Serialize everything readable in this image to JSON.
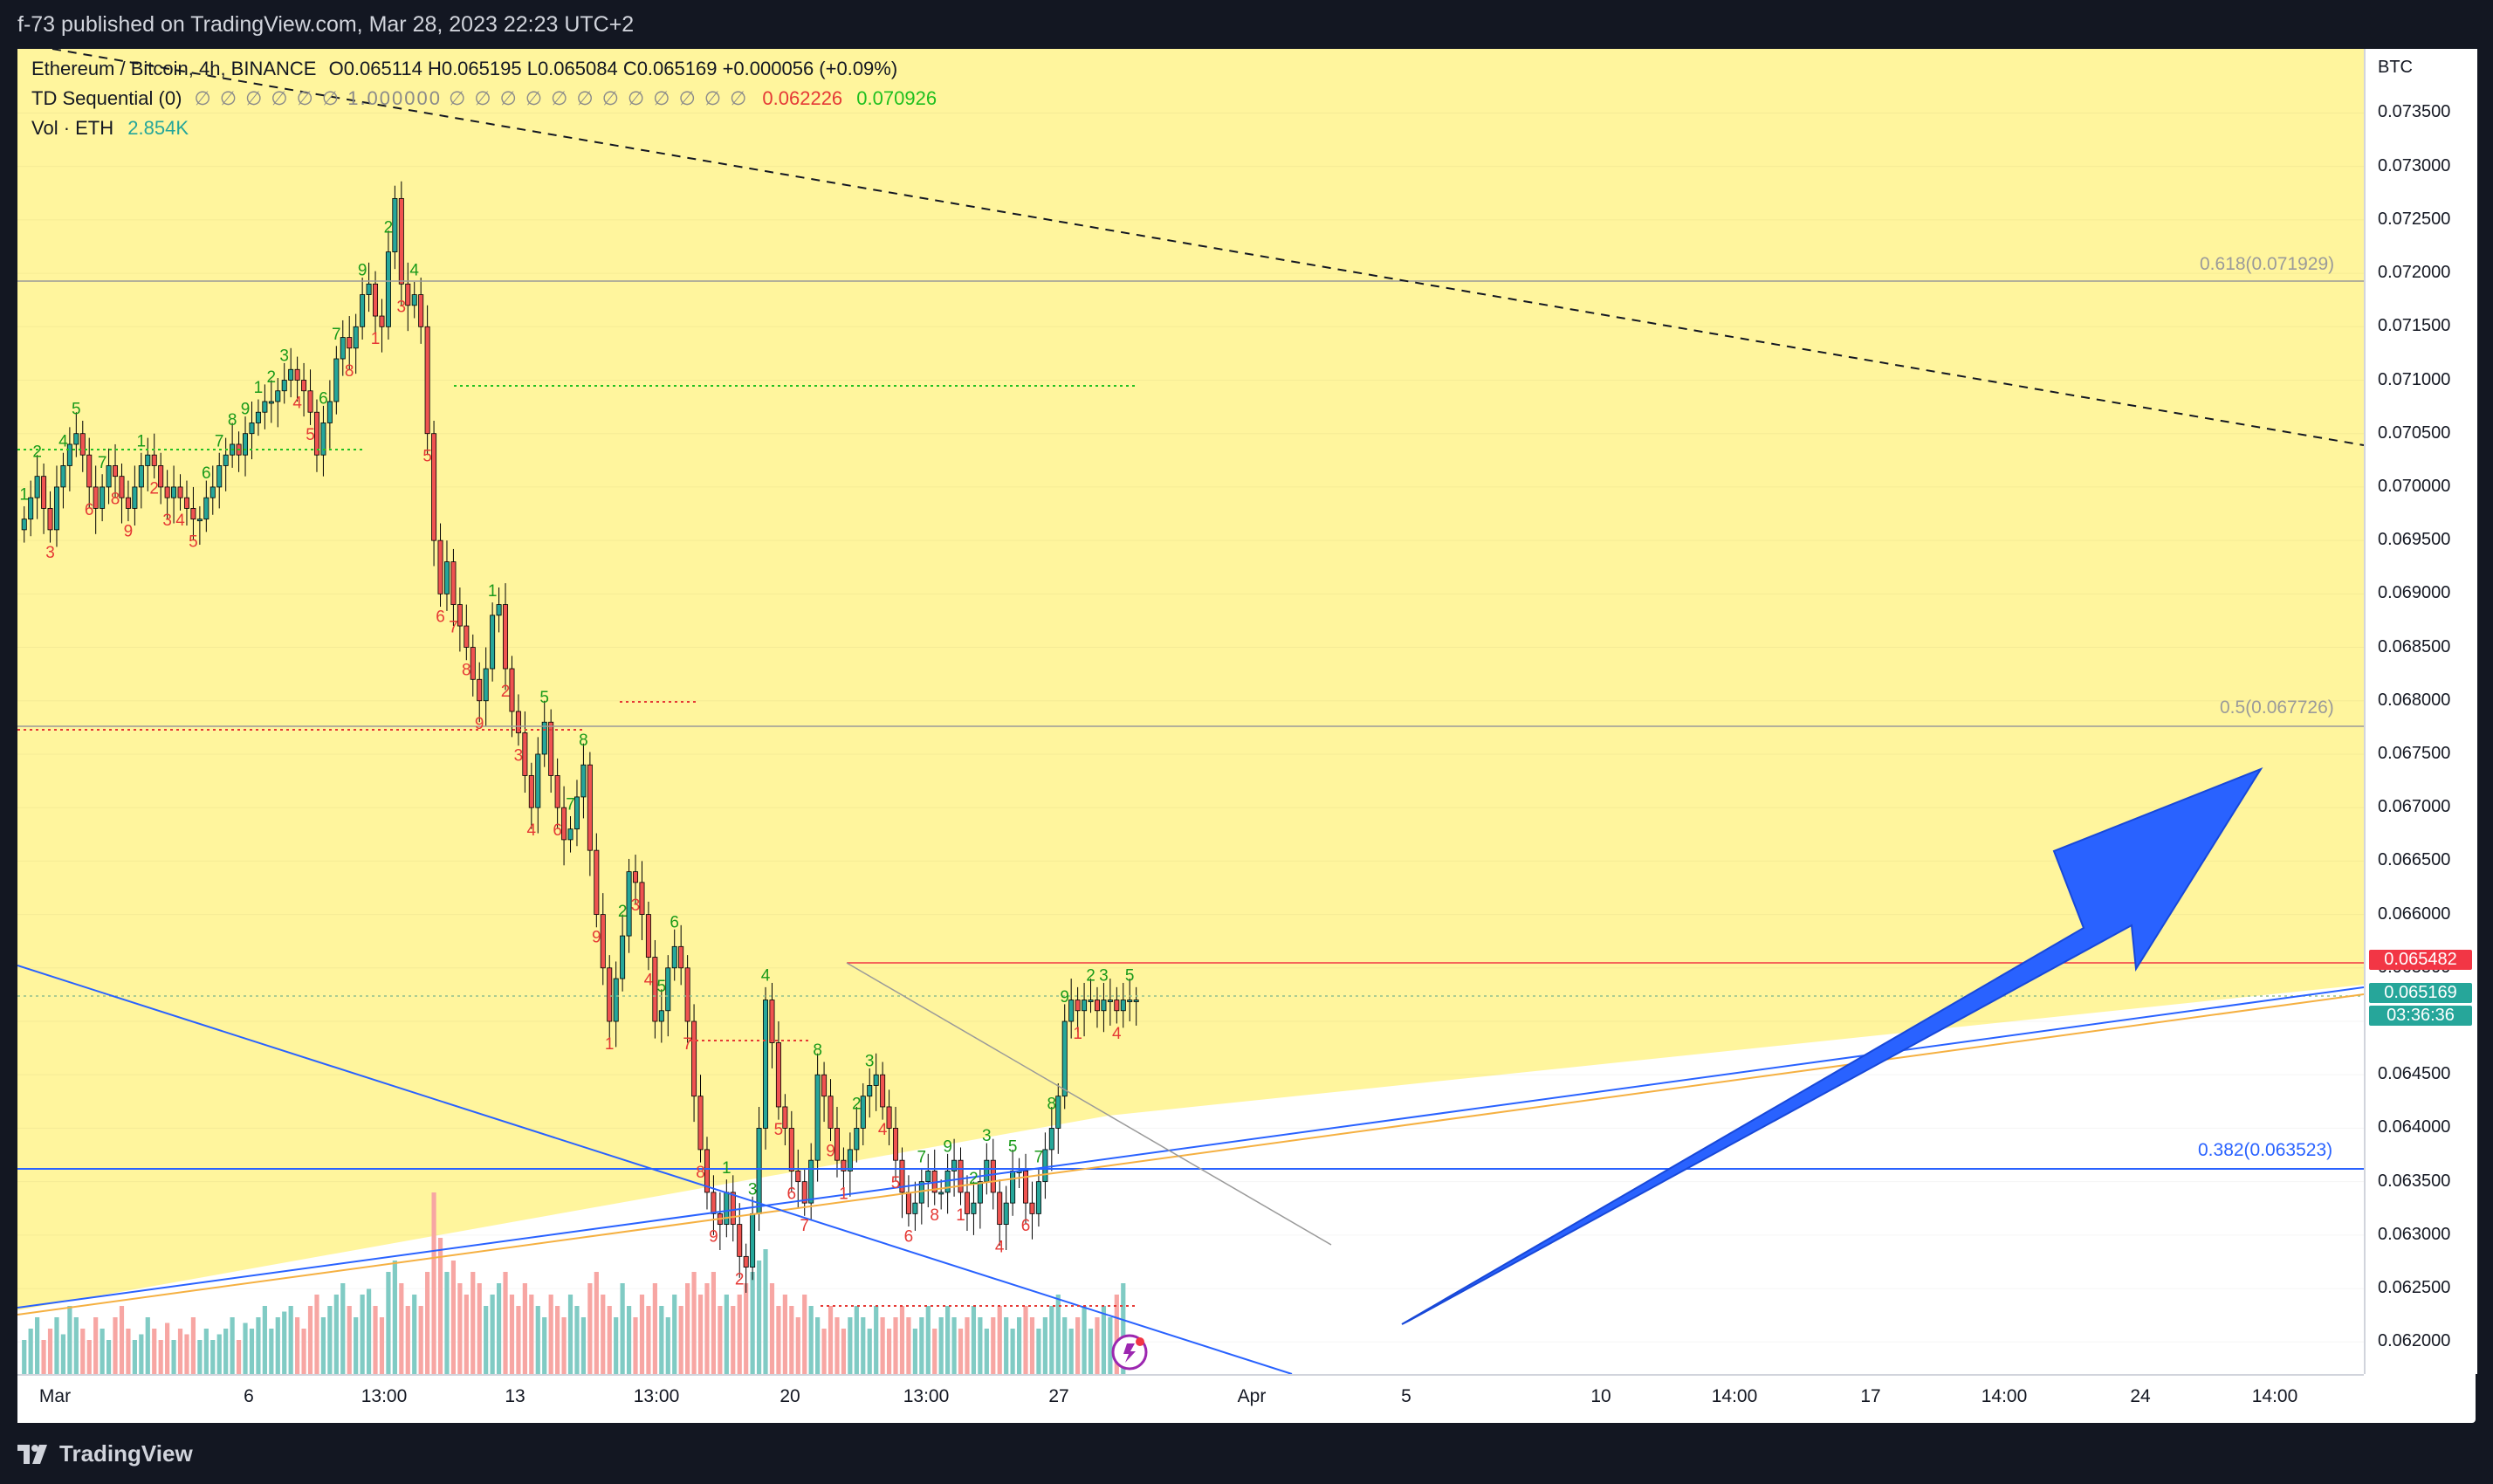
{
  "publish_line": "f-73 published on TradingView.com, Mar 28, 2023 22:23 UTC+2",
  "legend": {
    "symbol": "Ethereum / Bitcoin, 4h, BINANCE",
    "ohlc": "O0.065114  H0.065195  L0.065084  C0.065169  +0.000056 (+0.09%)",
    "td_label": "TD Sequential (0)",
    "td_placeholders": "∅ ∅ ∅ ∅ ∅ ∅ 1.000000 ∅ ∅ ∅ ∅ ∅ ∅ ∅ ∅ ∅ ∅ ∅ ∅",
    "td_red": "0.062226",
    "td_green": "0.070926",
    "vol_label": "Vol · ETH",
    "vol_value": "2.854K"
  },
  "axis": {
    "currency": "BTC",
    "price_ticks": [
      "0.073500",
      "0.073000",
      "0.072500",
      "0.072000",
      "0.071500",
      "0.071000",
      "0.070500",
      "0.070000",
      "0.069500",
      "0.069000",
      "0.068500",
      "0.068000",
      "0.067500",
      "0.067000",
      "0.066500",
      "0.066000",
      "0.065500",
      "0.065000",
      "0.064500",
      "0.064000",
      "0.063500",
      "0.063000",
      "0.062500",
      "0.062000"
    ],
    "time_ticks": [
      "Mar",
      "6",
      "13:00",
      "13",
      "13:00",
      "20",
      "13:00",
      "27",
      "Apr",
      "5",
      "10",
      "14:00",
      "17",
      "14:00",
      "24",
      "14:00"
    ]
  },
  "price_tags": {
    "resistance": "0.065482",
    "last": "0.065169",
    "countdown": "03:36:36"
  },
  "fib_labels": {
    "f618": "0.618(0.071929)",
    "f5": "0.5(0.067726)",
    "f382": "0.382(0.063523)"
  },
  "footer": {
    "brand": "TradingView"
  },
  "colors": {
    "up": "#26a69a",
    "down": "#ef5350",
    "pane_fill": "#fff59d",
    "arrow": "#2962ff",
    "fib_382": "#2962ff",
    "resistance": "#f23645"
  },
  "chart_data": {
    "type": "candlestick",
    "symbol": "ETHBTC",
    "interval": "4h",
    "ylim": [
      0.0617,
      0.0741
    ],
    "x": [
      0,
      1,
      2,
      3,
      4,
      5,
      6,
      7,
      8,
      9,
      10,
      11,
      12,
      13,
      14,
      15,
      16,
      17,
      18,
      19,
      20,
      21,
      22,
      23,
      24,
      25,
      26,
      27,
      28,
      29,
      30,
      31,
      32,
      33,
      34,
      35,
      36,
      37,
      38,
      39,
      40,
      41,
      42,
      43,
      44,
      45,
      46,
      47,
      48,
      49,
      50,
      51,
      52,
      53,
      54,
      55,
      56,
      57,
      58,
      59,
      60,
      61,
      62,
      63,
      64,
      65,
      66,
      67,
      68,
      69,
      70,
      71,
      72,
      73,
      74,
      75,
      76,
      77,
      78,
      79,
      80,
      81,
      82,
      83,
      84,
      85,
      86,
      87,
      88,
      89,
      90,
      91,
      92,
      93,
      94,
      95,
      96,
      97,
      98,
      99,
      100,
      101,
      102,
      103,
      104,
      105,
      106,
      107,
      108,
      109,
      110,
      111,
      112,
      113,
      114,
      115,
      116,
      117,
      118,
      119,
      120,
      121,
      122,
      123,
      124,
      125,
      126,
      127,
      128,
      129,
      130,
      131,
      132,
      133,
      134,
      135,
      136,
      137,
      138,
      139,
      140,
      141,
      142,
      143,
      144,
      145,
      146,
      147,
      148,
      149,
      150,
      151,
      152,
      153,
      154,
      155,
      156,
      157,
      158,
      159,
      160,
      161,
      162,
      163,
      164,
      165,
      166,
      167,
      168,
      169,
      170,
      171
    ],
    "close": [
      0.0697,
      0.0699,
      0.0701,
      0.0698,
      0.0696,
      0.07,
      0.0702,
      0.0704,
      0.0705,
      0.0703,
      0.07,
      0.0698,
      0.07,
      0.0702,
      0.0701,
      0.0699,
      0.0698,
      0.07,
      0.0702,
      0.0703,
      0.0702,
      0.07,
      0.0699,
      0.07,
      0.0699,
      0.0698,
      0.0697,
      0.0697,
      0.0699,
      0.07,
      0.0702,
      0.0703,
      0.0704,
      0.0703,
      0.0705,
      0.0706,
      0.0707,
      0.0708,
      0.0708,
      0.0709,
      0.071,
      0.0711,
      0.071,
      0.0709,
      0.0707,
      0.0703,
      0.0706,
      0.0708,
      0.0712,
      0.0714,
      0.0713,
      0.0715,
      0.0718,
      0.0719,
      0.0716,
      0.0715,
      0.0722,
      0.0727,
      0.0719,
      0.0717,
      0.0718,
      0.0715,
      0.0705,
      0.0695,
      0.069,
      0.0693,
      0.0689,
      0.0687,
      0.0685,
      0.0682,
      0.068,
      0.0683,
      0.0688,
      0.0689,
      0.0683,
      0.0679,
      0.0677,
      0.0673,
      0.067,
      0.0675,
      0.0678,
      0.0673,
      0.067,
      0.0667,
      0.0668,
      0.0671,
      0.0674,
      0.0666,
      0.066,
      0.0655,
      0.065,
      0.0654,
      0.0658,
      0.0664,
      0.0663,
      0.066,
      0.0656,
      0.065,
      0.0651,
      0.0655,
      0.0657,
      0.0655,
      0.065,
      0.0643,
      0.0638,
      0.0634,
      0.0632,
      0.0631,
      0.0634,
      0.0631,
      0.0628,
      0.0627,
      0.0632,
      0.064,
      0.0652,
      0.0648,
      0.0642,
      0.064,
      0.0636,
      0.0635,
      0.0633,
      0.0637,
      0.0645,
      0.0643,
      0.064,
      0.0637,
      0.0636,
      0.0638,
      0.064,
      0.0643,
      0.0644,
      0.0645,
      0.0642,
      0.064,
      0.0637,
      0.0634,
      0.0632,
      0.0633,
      0.0635,
      0.0636,
      0.0634,
      0.0634,
      0.0636,
      0.0637,
      0.0634,
      0.0632,
      0.0633,
      0.0635,
      0.0637,
      0.0634,
      0.0631,
      0.0633,
      0.0636,
      0.0636,
      0.0633,
      0.0632,
      0.0635,
      0.0638,
      0.064,
      0.0643,
      0.065,
      0.0652,
      0.0651,
      0.0652,
      0.0652,
      0.0651,
      0.0652,
      0.0652,
      0.0651,
      0.0652,
      0.0652,
      0.0652
    ],
    "volume_relative": [
      0.3,
      0.4,
      0.5,
      0.3,
      0.4,
      0.5,
      0.35,
      0.6,
      0.5,
      0.4,
      0.3,
      0.5,
      0.4,
      0.3,
      0.5,
      0.6,
      0.4,
      0.3,
      0.35,
      0.5,
      0.4,
      0.3,
      0.45,
      0.3,
      0.4,
      0.35,
      0.5,
      0.3,
      0.4,
      0.3,
      0.35,
      0.4,
      0.5,
      0.3,
      0.45,
      0.4,
      0.5,
      0.6,
      0.4,
      0.5,
      0.55,
      0.6,
      0.5,
      0.4,
      0.6,
      0.7,
      0.5,
      0.6,
      0.7,
      0.8,
      0.6,
      0.5,
      0.7,
      0.75,
      0.6,
      0.5,
      0.9,
      1.0,
      0.8,
      0.6,
      0.7,
      0.6,
      0.9,
      1.6,
      1.2,
      0.9,
      1.0,
      0.8,
      0.7,
      0.9,
      0.8,
      0.6,
      0.7,
      0.8,
      0.9,
      0.7,
      0.6,
      0.8,
      0.7,
      0.6,
      0.5,
      0.7,
      0.6,
      0.5,
      0.7,
      0.6,
      0.5,
      0.8,
      0.9,
      0.7,
      0.6,
      0.5,
      0.8,
      0.6,
      0.5,
      0.7,
      0.6,
      0.8,
      0.6,
      0.5,
      0.7,
      0.6,
      0.8,
      0.9,
      0.7,
      0.8,
      0.9,
      0.6,
      0.7,
      0.6,
      0.7,
      0.8,
      0.9,
      1.0,
      1.1,
      0.8,
      0.6,
      0.7,
      0.6,
      0.5,
      0.7,
      0.6,
      0.5,
      0.4,
      0.6,
      0.5,
      0.4,
      0.5,
      0.6,
      0.5,
      0.4,
      0.6,
      0.5,
      0.4,
      0.5,
      0.6,
      0.5,
      0.4,
      0.5,
      0.6,
      0.4,
      0.5,
      0.6,
      0.5,
      0.4,
      0.5,
      0.6,
      0.5,
      0.4,
      0.5,
      0.6,
      0.5,
      0.4,
      0.5,
      0.6,
      0.5,
      0.4,
      0.5,
      0.6,
      0.7,
      0.5,
      0.4,
      0.5,
      0.6,
      0.4,
      0.5,
      0.6,
      0.5,
      0.7,
      0.8
    ],
    "levels": {
      "fib_618": 0.071929,
      "fib_5": 0.067726,
      "fib_382": 0.063523,
      "resistance": 0.065482,
      "last": 0.065169
    }
  }
}
